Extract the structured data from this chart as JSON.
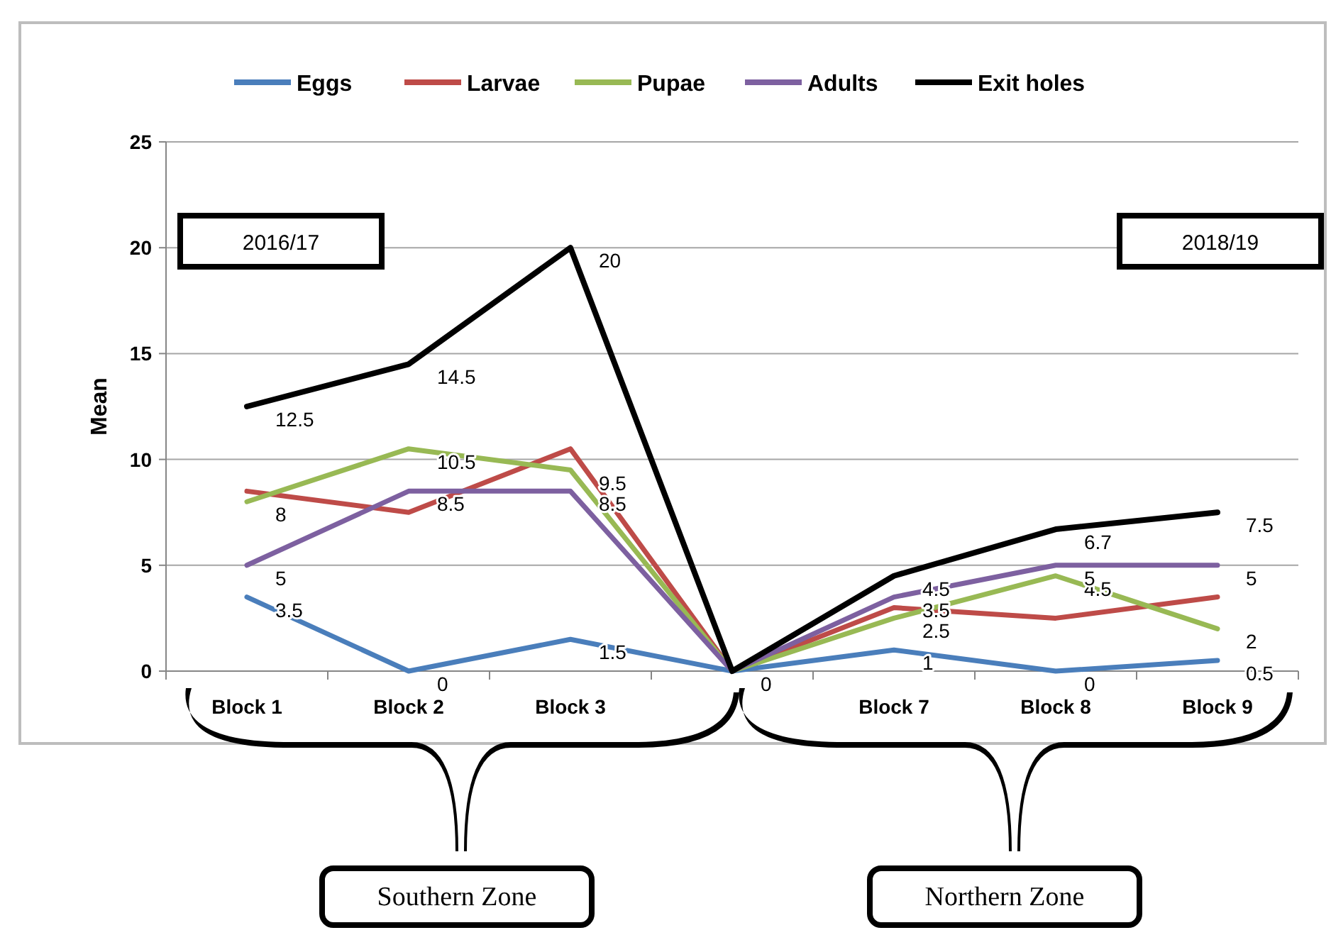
{
  "chart_data": {
    "type": "line",
    "ylabel": "Mean",
    "categories": [
      "Block 1",
      "Block 2",
      "Block 3",
      null,
      "Block 7",
      "Block 8",
      "Block 9"
    ],
    "ylim": [
      0,
      25
    ],
    "yticks": [
      0,
      5,
      10,
      15,
      20,
      25
    ],
    "grid": "y",
    "legend": "top",
    "marker": "none",
    "line_style": "solid",
    "series": [
      {
        "name": "Eggs",
        "color": "#4a7ebb",
        "values": [
          3.5,
          0,
          1.5,
          0,
          1,
          0,
          0.5
        ],
        "value_labels": [
          "3.5",
          "0",
          "1.5",
          "0",
          "1",
          "0",
          "0.5"
        ]
      },
      {
        "name": "Larvae",
        "color": "#be4b48",
        "values": [
          8.5,
          7.5,
          10.5,
          0,
          3,
          2.5,
          3.5
        ],
        "value_labels": [
          null,
          null,
          null,
          null,
          null,
          null,
          null
        ]
      },
      {
        "name": "Pupae",
        "color": "#98b954",
        "values": [
          8,
          10.5,
          9.5,
          0,
          2.5,
          4.5,
          2
        ],
        "value_labels": [
          "8",
          "10.5",
          "9.5",
          null,
          "2.5",
          "4.5",
          "2"
        ]
      },
      {
        "name": "Adults",
        "color": "#7d60a0",
        "values": [
          5,
          8.5,
          8.5,
          0,
          3.5,
          5,
          5
        ],
        "value_labels": [
          "5",
          "8.5",
          "8.5",
          null,
          "3.5",
          "5",
          "5"
        ]
      },
      {
        "name": "Exit holes",
        "color": "#000000",
        "values": [
          12.5,
          14.5,
          20,
          0,
          4.5,
          6.7,
          7.5
        ],
        "value_labels": [
          "12.5",
          "14.5",
          "20",
          null,
          "4.5",
          "6.7",
          "7.5"
        ]
      }
    ],
    "annotations": [
      "2016/17",
      "2018/19",
      "Southern Zone",
      "Northern Zone"
    ]
  }
}
